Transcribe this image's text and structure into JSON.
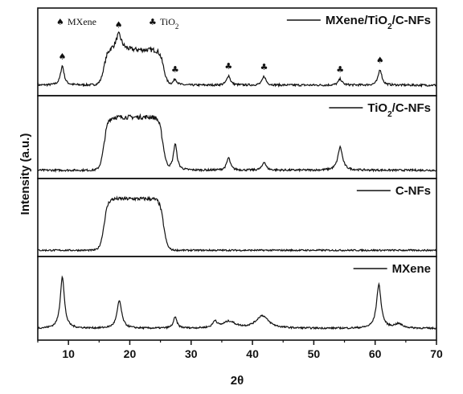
{
  "chart_data": {
    "type": "line",
    "xlabel": "2θ",
    "ylabel": "Intensity (a.u.)",
    "xlim": [
      5,
      70
    ],
    "xticks": [
      10,
      20,
      30,
      40,
      50,
      60,
      70
    ],
    "marker_legend": [
      {
        "name": "MXene",
        "glyph": "♠"
      },
      {
        "name": "TiO",
        "sub": "2",
        "glyph": "♣"
      }
    ],
    "panels": [
      {
        "legend": {
          "base": "MXene/TiO",
          "sub": "2",
          "rest": "/C-NFs"
        },
        "baseline": 0.12,
        "noise": 0.012,
        "peaks": [
          {
            "x": 9.0,
            "h": 0.22,
            "w": 0.35
          },
          {
            "x": 18.2,
            "h": 0.18,
            "w": 0.55
          },
          {
            "x": 27.4,
            "h": 0.07,
            "w": 0.35
          },
          {
            "x": 36.1,
            "h": 0.11,
            "w": 0.35
          },
          {
            "x": 41.9,
            "h": 0.1,
            "w": 0.35
          },
          {
            "x": 54.3,
            "h": 0.07,
            "w": 0.35
          },
          {
            "x": 60.8,
            "h": 0.18,
            "w": 0.35
          }
        ],
        "humps": [
          {
            "start": 15.8,
            "end": 25.5,
            "h": 0.4,
            "edge": 0.9
          }
        ],
        "markers": [
          {
            "x": 9.0,
            "glyph": "♠"
          },
          {
            "x": 18.2,
            "glyph": "♠"
          },
          {
            "x": 27.4,
            "glyph": "♣"
          },
          {
            "x": 36.1,
            "glyph": "♣"
          },
          {
            "x": 41.9,
            "glyph": "♣"
          },
          {
            "x": 54.3,
            "glyph": "♣"
          },
          {
            "x": 60.8,
            "glyph": "♠"
          }
        ]
      },
      {
        "legend": {
          "base": "TiO",
          "sub": "2",
          "rest": "/C-NFs"
        },
        "baseline": 0.1,
        "noise": 0.012,
        "peaks": [
          {
            "x": 27.4,
            "h": 0.32,
            "w": 0.35
          },
          {
            "x": 36.1,
            "h": 0.15,
            "w": 0.35
          },
          {
            "x": 41.9,
            "h": 0.1,
            "w": 0.35
          },
          {
            "x": 54.3,
            "h": 0.28,
            "w": 0.45
          }
        ],
        "humps": [
          {
            "start": 15.8,
            "end": 25.4,
            "h": 0.64,
            "edge": 0.9
          }
        ],
        "markers": []
      },
      {
        "legend": {
          "base": "C-NFs",
          "sub": "",
          "rest": ""
        },
        "baseline": 0.08,
        "noise": 0.01,
        "peaks": [],
        "humps": [
          {
            "start": 15.8,
            "end": 25.5,
            "h": 0.66,
            "edge": 0.9
          }
        ],
        "markers": []
      },
      {
        "legend": {
          "base": "MXene",
          "sub": "",
          "rest": ""
        },
        "baseline": 0.14,
        "noise": 0.01,
        "peaks": [
          {
            "x": 9.0,
            "h": 0.62,
            "w": 0.4
          },
          {
            "x": 18.3,
            "h": 0.33,
            "w": 0.45
          },
          {
            "x": 27.4,
            "h": 0.13,
            "w": 0.35
          },
          {
            "x": 33.9,
            "h": 0.08,
            "w": 0.4
          },
          {
            "x": 36.2,
            "h": 0.08,
            "w": 1.2
          },
          {
            "x": 41.6,
            "h": 0.15,
            "w": 1.2
          },
          {
            "x": 60.6,
            "h": 0.52,
            "w": 0.45
          },
          {
            "x": 63.8,
            "h": 0.05,
            "w": 0.8
          }
        ],
        "humps": [],
        "markers": []
      }
    ]
  }
}
